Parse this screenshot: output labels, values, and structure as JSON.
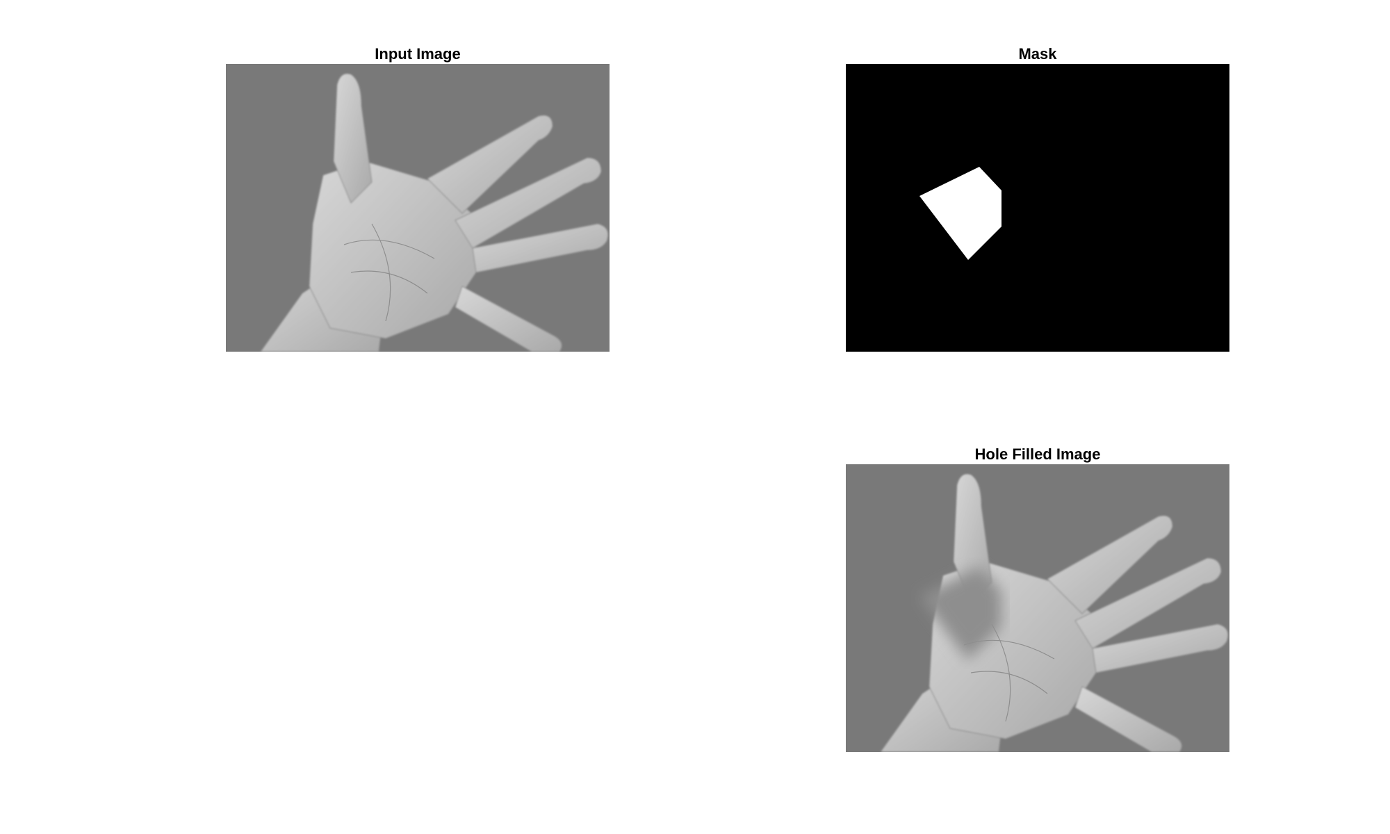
{
  "figure": {
    "panels": [
      {
        "title": "Input Image",
        "content": "grayscale hand photo"
      },
      {
        "title": "Mask",
        "content": "binary mask"
      },
      {
        "title": "Hole Filled Image",
        "content": "grayscale hand photo with filled region"
      }
    ]
  },
  "colors": {
    "background": "#ffffff",
    "mask_black": "#000000",
    "mask_white": "#ffffff",
    "carpet_base": "#3a3a3a",
    "skin": "#c8c8c8"
  }
}
